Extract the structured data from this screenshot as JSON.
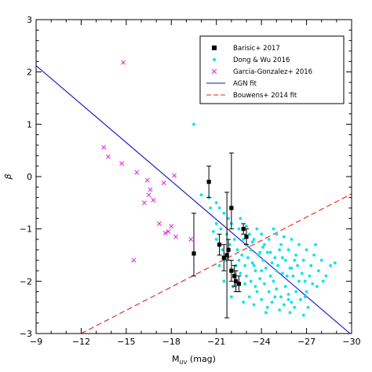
{
  "chart_data": {
    "type": "scatter",
    "xlabel": "M",
    "xlabel_sub": "UV",
    "xlabel_unit": " (mag)",
    "ylabel": "β",
    "xlim": [
      -9,
      -30
    ],
    "ylim": [
      -3,
      3
    ],
    "x_ticks": [
      -9,
      -12,
      -15,
      -18,
      -21,
      -24,
      -27,
      -30
    ],
    "x_tick_labels": [
      "−9",
      "−12",
      "−15",
      "−18",
      "−21",
      "−24",
      "−27",
      "−30"
    ],
    "y_ticks": [
      -3,
      -2,
      -1,
      0,
      1,
      2,
      3
    ],
    "y_tick_labels": [
      "−3",
      "−2",
      "−1",
      "0",
      "1",
      "2",
      "3"
    ],
    "legend_position": "top-right",
    "legend": [
      {
        "label": "Barisic+ 2017",
        "marker": "square",
        "color": "#000000"
      },
      {
        "label": "Dong & Wu 2016",
        "marker": "circle",
        "color": "#00e5ee"
      },
      {
        "label": "Garcia-Gonzalez+ 2016",
        "marker": "cross",
        "color": "#e020e0"
      },
      {
        "label": "AGN fit",
        "marker": "line",
        "color": "#1010c0"
      },
      {
        "label": "Bouwens+ 2014 fit",
        "marker": "dashed",
        "color": "#e02020"
      }
    ],
    "series": [
      {
        "name": "Barisic+ 2017",
        "type": "errorbar",
        "color": "#000000",
        "points": [
          {
            "x": -19.5,
            "y": -1.47,
            "ylo": -1.9,
            "yhi": -0.7
          },
          {
            "x": -20.5,
            "y": -0.1,
            "ylo": -0.4,
            "yhi": 0.2
          },
          {
            "x": -21.2,
            "y": -1.3,
            "ylo": -1.5,
            "yhi": -1.1
          },
          {
            "x": -21.5,
            "y": -1.55,
            "ylo": -1.8,
            "yhi": -1.3
          },
          {
            "x": -21.7,
            "y": -1.5,
            "ylo": -2.7,
            "yhi": -0.3
          },
          {
            "x": -21.8,
            "y": -1.4,
            "ylo": -1.6,
            "yhi": -1.2
          },
          {
            "x": -22.0,
            "y": -0.6,
            "ylo": -1.0,
            "yhi": 0.45
          },
          {
            "x": -22.0,
            "y": -1.8,
            "ylo": -2.0,
            "yhi": -1.6
          },
          {
            "x": -22.2,
            "y": -1.9,
            "ylo": -2.1,
            "yhi": -1.7
          },
          {
            "x": -22.3,
            "y": -2.0,
            "ylo": -2.2,
            "yhi": -1.8
          },
          {
            "x": -22.5,
            "y": -2.05,
            "ylo": -2.2,
            "yhi": -1.9
          },
          {
            "x": -22.8,
            "y": -1.0,
            "ylo": -1.1,
            "yhi": -0.9
          },
          {
            "x": -23.0,
            "y": -1.15,
            "ylo": -1.3,
            "yhi": -1.0
          }
        ]
      },
      {
        "name": "Dong & Wu 2016",
        "type": "scatter",
        "color": "#00e5ee",
        "points": [
          [
            -19.5,
            1.0
          ],
          [
            -20.0,
            -0.35
          ],
          [
            -20.6,
            -0.6
          ],
          [
            -20.5,
            -0.4
          ],
          [
            -21.0,
            -0.5
          ],
          [
            -21.2,
            -0.6
          ],
          [
            -21.0,
            -0.9
          ],
          [
            -21.3,
            -1.0
          ],
          [
            -21.5,
            -0.7
          ],
          [
            -21.8,
            -0.8
          ],
          [
            -21.0,
            -1.2
          ],
          [
            -21.4,
            -1.4
          ],
          [
            -21.7,
            -1.1
          ],
          [
            -22.0,
            -0.9
          ],
          [
            -22.2,
            -1.2
          ],
          [
            -22.5,
            -1.0
          ],
          [
            -22.6,
            -0.8
          ],
          [
            -22.8,
            -1.2
          ],
          [
            -23.0,
            -0.95
          ],
          [
            -23.2,
            -1.1
          ],
          [
            -22.4,
            -1.4
          ],
          [
            -22.7,
            -1.5
          ],
          [
            -23.0,
            -1.3
          ],
          [
            -23.3,
            -1.4
          ],
          [
            -23.5,
            -1.2
          ],
          [
            -23.7,
            -1.0
          ],
          [
            -24.0,
            -1.1
          ],
          [
            -24.2,
            -1.3
          ],
          [
            -24.5,
            -1.2
          ],
          [
            -24.8,
            -1.0
          ],
          [
            -25.0,
            -1.1
          ],
          [
            -25.3,
            -1.3
          ],
          [
            -25.5,
            -1.15
          ],
          [
            -25.8,
            -1.4
          ],
          [
            -26.0,
            -1.2
          ],
          [
            -26.3,
            -1.5
          ],
          [
            -26.5,
            -1.3
          ],
          [
            -26.8,
            -1.6
          ],
          [
            -27.0,
            -1.4
          ],
          [
            -27.3,
            -1.7
          ],
          [
            -27.5,
            -1.5
          ],
          [
            -27.8,
            -1.8
          ],
          [
            -28.0,
            -1.6
          ],
          [
            -28.3,
            -1.9
          ],
          [
            -28.6,
            -1.7
          ],
          [
            -28.9,
            -1.65
          ],
          [
            -22.5,
            -1.6
          ],
          [
            -22.9,
            -1.7
          ],
          [
            -23.1,
            -1.55
          ],
          [
            -23.4,
            -1.65
          ],
          [
            -23.6,
            -1.8
          ],
          [
            -23.8,
            -1.5
          ],
          [
            -24.1,
            -1.6
          ],
          [
            -24.3,
            -1.75
          ],
          [
            -24.6,
            -1.45
          ],
          [
            -24.9,
            -1.55
          ],
          [
            -25.1,
            -1.7
          ],
          [
            -25.4,
            -1.85
          ],
          [
            -25.6,
            -1.6
          ],
          [
            -25.9,
            -1.75
          ],
          [
            -26.1,
            -1.9
          ],
          [
            -26.4,
            -1.7
          ],
          [
            -26.7,
            -1.85
          ],
          [
            -26.9,
            -2.0
          ],
          [
            -27.2,
            -1.9
          ],
          [
            -27.4,
            -2.05
          ],
          [
            -27.7,
            -2.1
          ],
          [
            -28.1,
            -2.0
          ],
          [
            -23.0,
            -1.9
          ],
          [
            -23.3,
            -2.0
          ],
          [
            -23.6,
            -2.1
          ],
          [
            -23.9,
            -1.95
          ],
          [
            -24.2,
            -2.05
          ],
          [
            -24.5,
            -2.2
          ],
          [
            -24.8,
            -2.0
          ],
          [
            -25.0,
            -2.15
          ],
          [
            -25.3,
            -2.3
          ],
          [
            -25.6,
            -2.1
          ],
          [
            -25.8,
            -2.25
          ],
          [
            -26.0,
            -2.4
          ],
          [
            -26.3,
            -2.2
          ],
          [
            -26.6,
            -2.35
          ],
          [
            -26.9,
            -2.3
          ],
          [
            -27.1,
            -2.5
          ],
          [
            -23.2,
            -2.3
          ],
          [
            -23.5,
            -2.45
          ],
          [
            -24.0,
            -2.35
          ],
          [
            -24.4,
            -2.5
          ],
          [
            -24.7,
            -2.4
          ],
          [
            -25.2,
            -2.55
          ],
          [
            -25.5,
            -2.45
          ],
          [
            -25.9,
            -2.6
          ],
          [
            -26.2,
            -2.5
          ],
          [
            -26.8,
            -2.65
          ],
          [
            -22.0,
            -2.3
          ],
          [
            -22.8,
            -2.4
          ],
          [
            -24.1,
            -1.35
          ],
          [
            -24.4,
            -1.45
          ],
          [
            -24.7,
            -1.65
          ],
          [
            -25.2,
            -1.4
          ],
          [
            -25.7,
            -1.9
          ],
          [
            -26.2,
            -1.6
          ],
          [
            -23.4,
            -1.25
          ],
          [
            -23.9,
            -1.45
          ],
          [
            -22.3,
            -1.7
          ],
          [
            -22.1,
            -2.1
          ],
          [
            -21.5,
            -2.0
          ],
          [
            -21.2,
            -1.7
          ],
          [
            -21.9,
            -1.3
          ],
          [
            -22.6,
            -1.85
          ],
          [
            -23.7,
            -2.2
          ],
          [
            -24.9,
            -2.3
          ],
          [
            -26.5,
            -2.0
          ],
          [
            -27.6,
            -1.3
          ],
          [
            -25.0,
            -1.8
          ],
          [
            -24.6,
            -1.9
          ],
          [
            -24.0,
            -1.8
          ],
          [
            -23.5,
            -1.7
          ],
          [
            -25.4,
            -1.55
          ],
          [
            -26.0,
            -1.75
          ],
          [
            -20.8,
            -1.05
          ],
          [
            -21.6,
            -1.6
          ],
          [
            -22.9,
            -2.05
          ],
          [
            -24.3,
            -2.6
          ],
          [
            -25.8,
            -2.35
          ],
          [
            -27.0,
            -2.2
          ]
        ]
      },
      {
        "name": "Garcia-Gonzalez+ 2016",
        "type": "scatter",
        "color": "#e020e0",
        "points": [
          [
            -14.8,
            2.18
          ],
          [
            -13.5,
            0.56
          ],
          [
            -13.8,
            0.38
          ],
          [
            -14.7,
            0.25
          ],
          [
            -15.7,
            0.08
          ],
          [
            -16.4,
            -0.07
          ],
          [
            -16.6,
            -0.25
          ],
          [
            -16.5,
            -0.35
          ],
          [
            -16.2,
            -0.5
          ],
          [
            -16.8,
            -0.45
          ],
          [
            -17.5,
            -0.12
          ],
          [
            -18.2,
            0.02
          ],
          [
            -17.2,
            -0.9
          ],
          [
            -17.6,
            -1.08
          ],
          [
            -17.8,
            -1.05
          ],
          [
            -18.0,
            -0.95
          ],
          [
            -18.3,
            -1.15
          ],
          [
            -19.3,
            -1.2
          ],
          [
            -15.5,
            -1.6
          ]
        ]
      }
    ],
    "fits": [
      {
        "name": "AGN fit",
        "color": "#1010c0",
        "style": "solid",
        "x": [
          -9,
          -29.9
        ],
        "y": [
          2.12,
          -3.0
        ]
      },
      {
        "name": "Bouwens+ 2014 fit",
        "color": "#e02020",
        "style": "dashed",
        "x": [
          -12.0,
          -30
        ],
        "y": [
          -3.0,
          -0.33
        ]
      }
    ]
  }
}
